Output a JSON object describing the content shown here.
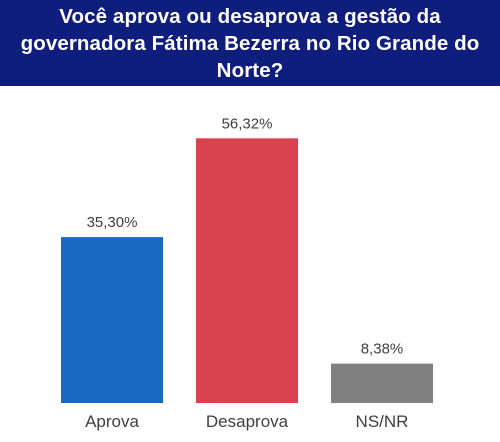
{
  "chart_data": {
    "type": "bar",
    "title": "Você aprova ou desaprova a gestão da governadora Fátima Bezerra no Rio Grande do Norte?",
    "categories": [
      "Aprova",
      "Desaprova",
      "NS/NR"
    ],
    "values": [
      35.3,
      56.32,
      8.38
    ],
    "value_labels": [
      "35,30%",
      "56,32%",
      "8,38%"
    ],
    "colors": [
      "#1769c2",
      "#d9434f",
      "#808080"
    ],
    "ylim": [
      0,
      60
    ],
    "grid": false,
    "legend": "none"
  },
  "colors": {
    "title_background": "#0f1e7d",
    "title_text": "#ffffff"
  }
}
